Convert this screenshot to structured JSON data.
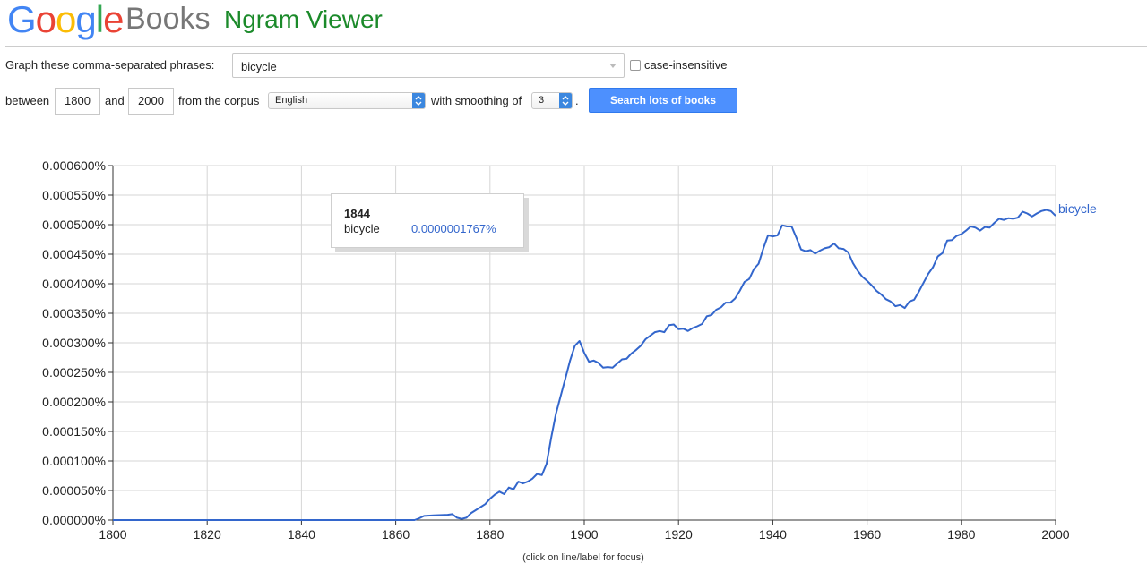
{
  "header": {
    "logo_letters": [
      {
        "ch": "G",
        "color": "#4285f4"
      },
      {
        "ch": "o",
        "color": "#ea4335"
      },
      {
        "ch": "o",
        "color": "#fbbc05"
      },
      {
        "ch": "g",
        "color": "#4285f4"
      },
      {
        "ch": "l",
        "color": "#34a853"
      },
      {
        "ch": "e",
        "color": "#ea4335"
      }
    ],
    "logo_books": "Books",
    "app_title": "Ngram Viewer"
  },
  "form": {
    "phrases_label": "Graph these comma-separated phrases:",
    "phrases_value": "bicycle",
    "case_insensitive_label": "case-insensitive",
    "case_insensitive_checked": false,
    "between_label": "between",
    "start_year": "1800",
    "and_label": "and",
    "end_year": "2000",
    "corpus_label": "from the corpus",
    "corpus_value": "English",
    "smoothing_label": "with smoothing of",
    "smoothing_value": "3",
    "period": ".",
    "search_button": "Search lots of books"
  },
  "tooltip": {
    "year": "1844",
    "phrase": "bicycle",
    "value": "0.0000001767%"
  },
  "footnote": "(click on line/label for focus)",
  "chart_data": {
    "type": "line",
    "xlim": [
      1800,
      2000
    ],
    "ylim": [
      0,
      0.0006
    ],
    "x_ticks": [
      "1800",
      "1820",
      "1840",
      "1860",
      "1880",
      "1900",
      "1920",
      "1940",
      "1960",
      "1980",
      "2000"
    ],
    "y_ticks": [
      "0.000000%",
      "0.000050%",
      "0.000100%",
      "0.000150%",
      "0.000200%",
      "0.000250%",
      "0.000300%",
      "0.000350%",
      "0.000400%",
      "0.000450%",
      "0.000500%",
      "0.000550%",
      "0.000600%"
    ],
    "grid": true,
    "series": [
      {
        "name": "bicycle",
        "color": "#3366cc",
        "points": [
          [
            1800,
            0
          ],
          [
            1864,
            0
          ],
          [
            1865,
            3e-06
          ],
          [
            1866,
            7e-06
          ],
          [
            1868,
            8e-06
          ],
          [
            1871,
            9e-06
          ],
          [
            1872,
            1e-05
          ],
          [
            1873,
            4e-06
          ],
          [
            1874,
            2e-06
          ],
          [
            1875,
            4e-06
          ],
          [
            1876,
            1.2e-05
          ],
          [
            1878,
            2.2e-05
          ],
          [
            1879,
            2.7e-05
          ],
          [
            1880,
            3.6e-05
          ],
          [
            1881,
            4.3e-05
          ],
          [
            1882,
            4.8e-05
          ],
          [
            1883,
            4.4e-05
          ],
          [
            1884,
            5.5e-05
          ],
          [
            1885,
            5.2e-05
          ],
          [
            1886,
            6.5e-05
          ],
          [
            1887,
            6.2e-05
          ],
          [
            1888,
            6.5e-05
          ],
          [
            1889,
            7e-05
          ],
          [
            1890,
            7.8e-05
          ],
          [
            1891,
            7.6e-05
          ],
          [
            1892,
            9.5e-05
          ],
          [
            1893,
            0.00014
          ],
          [
            1894,
            0.00018
          ],
          [
            1895,
            0.00021
          ],
          [
            1896,
            0.00024
          ],
          [
            1897,
            0.00027
          ],
          [
            1898,
            0.000295
          ],
          [
            1899,
            0.000303
          ],
          [
            1900,
            0.000283
          ],
          [
            1901,
            0.000268
          ],
          [
            1902,
            0.00027
          ],
          [
            1903,
            0.000266
          ],
          [
            1904,
            0.000258
          ],
          [
            1905,
            0.000259
          ],
          [
            1906,
            0.000258
          ],
          [
            1907,
            0.000265
          ],
          [
            1908,
            0.000272
          ],
          [
            1909,
            0.000273
          ],
          [
            1910,
            0.000282
          ],
          [
            1911,
            0.000288
          ],
          [
            1912,
            0.000295
          ],
          [
            1913,
            0.000306
          ],
          [
            1914,
            0.000312
          ],
          [
            1915,
            0.000318
          ],
          [
            1916,
            0.00032
          ],
          [
            1917,
            0.000318
          ],
          [
            1918,
            0.00033
          ],
          [
            1919,
            0.000331
          ],
          [
            1920,
            0.000323
          ],
          [
            1921,
            0.000324
          ],
          [
            1922,
            0.00032
          ],
          [
            1923,
            0.000325
          ],
          [
            1924,
            0.000328
          ],
          [
            1925,
            0.000332
          ],
          [
            1926,
            0.000345
          ],
          [
            1927,
            0.000347
          ],
          [
            1928,
            0.000356
          ],
          [
            1929,
            0.00036
          ],
          [
            1930,
            0.000368
          ],
          [
            1931,
            0.000368
          ],
          [
            1932,
            0.000375
          ],
          [
            1933,
            0.000388
          ],
          [
            1934,
            0.000403
          ],
          [
            1935,
            0.000408
          ],
          [
            1936,
            0.000425
          ],
          [
            1937,
            0.000434
          ],
          [
            1938,
            0.00046
          ],
          [
            1939,
            0.000482
          ],
          [
            1940,
            0.00048
          ],
          [
            1941,
            0.000482
          ],
          [
            1942,
            0.000499
          ],
          [
            1943,
            0.000497
          ],
          [
            1944,
            0.000497
          ],
          [
            1945,
            0.000478
          ],
          [
            1946,
            0.000458
          ],
          [
            1947,
            0.000455
          ],
          [
            1948,
            0.000457
          ],
          [
            1949,
            0.000451
          ],
          [
            1950,
            0.000456
          ],
          [
            1951,
            0.00046
          ],
          [
            1952,
            0.000462
          ],
          [
            1953,
            0.000468
          ],
          [
            1954,
            0.00046
          ],
          [
            1955,
            0.000459
          ],
          [
            1956,
            0.000453
          ],
          [
            1957,
            0.000435
          ],
          [
            1958,
            0.000422
          ],
          [
            1959,
            0.000412
          ],
          [
            1960,
            0.000405
          ],
          [
            1961,
            0.000397
          ],
          [
            1962,
            0.000388
          ],
          [
            1963,
            0.000382
          ],
          [
            1964,
            0.000374
          ],
          [
            1965,
            0.00037
          ],
          [
            1966,
            0.000362
          ],
          [
            1967,
            0.000364
          ],
          [
            1968,
            0.000359
          ],
          [
            1969,
            0.00037
          ],
          [
            1970,
            0.000373
          ],
          [
            1971,
            0.000387
          ],
          [
            1972,
            0.000402
          ],
          [
            1973,
            0.000417
          ],
          [
            1974,
            0.000428
          ],
          [
            1975,
            0.000446
          ],
          [
            1976,
            0.000452
          ],
          [
            1977,
            0.000473
          ],
          [
            1978,
            0.000474
          ],
          [
            1979,
            0.000481
          ],
          [
            1980,
            0.000484
          ],
          [
            1981,
            0.00049
          ],
          [
            1982,
            0.000497
          ],
          [
            1983,
            0.000495
          ],
          [
            1984,
            0.00049
          ],
          [
            1985,
            0.000496
          ],
          [
            1986,
            0.000495
          ],
          [
            1987,
            0.000503
          ],
          [
            1988,
            0.00051
          ],
          [
            1989,
            0.000508
          ],
          [
            1990,
            0.000511
          ],
          [
            1991,
            0.00051
          ],
          [
            1992,
            0.000512
          ],
          [
            1993,
            0.000522
          ],
          [
            1994,
            0.000519
          ],
          [
            1995,
            0.000514
          ],
          [
            1996,
            0.000519
          ],
          [
            1997,
            0.000523
          ],
          [
            1998,
            0.000525
          ],
          [
            1999,
            0.000523
          ],
          [
            2000,
            0.000515
          ]
        ]
      }
    ]
  }
}
